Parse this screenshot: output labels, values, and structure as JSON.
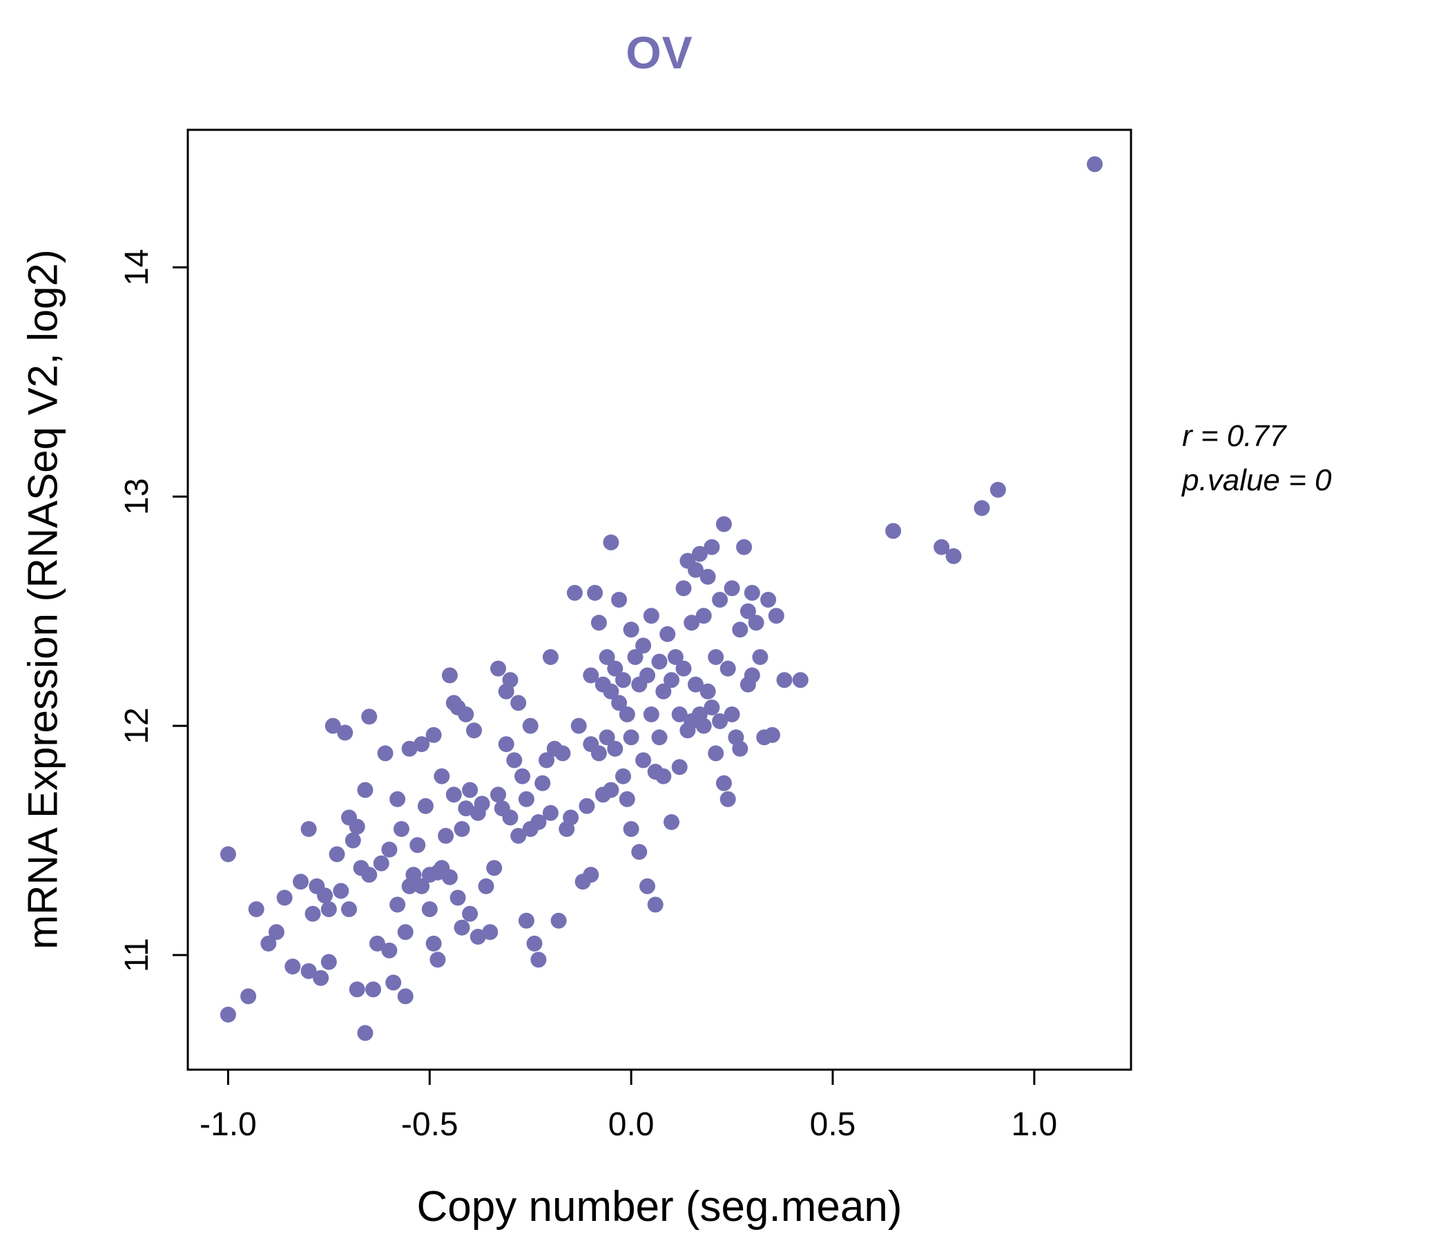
{
  "chart_data": {
    "type": "scatter",
    "title": "OV",
    "title_color": "#7570b3",
    "xlabel": "Copy number (seg.mean)",
    "ylabel": "mRNA Expression (RNASeq V2, log2)",
    "xlim": [
      -1.1,
      1.24
    ],
    "ylim": [
      10.5,
      14.6
    ],
    "xticks": [
      -1.0,
      -0.5,
      0.0,
      0.5,
      1.0
    ],
    "xtick_labels": [
      "-1.0",
      "-0.5",
      "0.0",
      "0.5",
      "1.0"
    ],
    "yticks": [
      11,
      12,
      13,
      14
    ],
    "ytick_labels": [
      "11",
      "12",
      "13",
      "14"
    ],
    "grid": false,
    "legend": "none",
    "point_color": "#7570b3",
    "annotation": {
      "line1": "r = 0.77",
      "line2": "p.value = 0"
    },
    "points": [
      [
        -1.0,
        11.44
      ],
      [
        -1.0,
        10.74
      ],
      [
        -0.95,
        10.82
      ],
      [
        -0.93,
        11.2
      ],
      [
        -0.9,
        11.05
      ],
      [
        -0.88,
        11.1
      ],
      [
        -0.86,
        11.25
      ],
      [
        -0.84,
        10.95
      ],
      [
        -0.82,
        11.32
      ],
      [
        -0.8,
        11.55
      ],
      [
        -0.8,
        10.93
      ],
      [
        -0.79,
        11.18
      ],
      [
        -0.78,
        11.3
      ],
      [
        -0.77,
        10.9
      ],
      [
        -0.76,
        11.26
      ],
      [
        -0.75,
        11.2
      ],
      [
        -0.75,
        10.97
      ],
      [
        -0.74,
        12.0
      ],
      [
        -0.73,
        11.44
      ],
      [
        -0.72,
        11.28
      ],
      [
        -0.71,
        11.97
      ],
      [
        -0.7,
        11.6
      ],
      [
        -0.7,
        11.2
      ],
      [
        -0.69,
        11.5
      ],
      [
        -0.68,
        10.85
      ],
      [
        -0.68,
        11.56
      ],
      [
        -0.67,
        11.38
      ],
      [
        -0.66,
        10.66
      ],
      [
        -0.66,
        11.72
      ],
      [
        -0.65,
        12.04
      ],
      [
        -0.65,
        11.35
      ],
      [
        -0.64,
        10.85
      ],
      [
        -0.63,
        11.05
      ],
      [
        -0.62,
        11.4
      ],
      [
        -0.61,
        11.88
      ],
      [
        -0.6,
        11.02
      ],
      [
        -0.6,
        11.46
      ],
      [
        -0.59,
        10.88
      ],
      [
        -0.58,
        11.68
      ],
      [
        -0.58,
        11.22
      ],
      [
        -0.57,
        11.55
      ],
      [
        -0.56,
        11.1
      ],
      [
        -0.56,
        10.82
      ],
      [
        -0.55,
        11.3
      ],
      [
        -0.55,
        11.9
      ],
      [
        -0.54,
        11.35
      ],
      [
        -0.53,
        11.48
      ],
      [
        -0.52,
        11.3
      ],
      [
        -0.52,
        11.92
      ],
      [
        -0.51,
        11.65
      ],
      [
        -0.5,
        11.35
      ],
      [
        -0.5,
        11.2
      ],
      [
        -0.49,
        11.96
      ],
      [
        -0.49,
        11.05
      ],
      [
        -0.48,
        11.36
      ],
      [
        -0.48,
        10.98
      ],
      [
        -0.47,
        11.38
      ],
      [
        -0.47,
        11.78
      ],
      [
        -0.46,
        11.52
      ],
      [
        -0.45,
        12.22
      ],
      [
        -0.45,
        11.34
      ],
      [
        -0.44,
        12.1
      ],
      [
        -0.44,
        11.7
      ],
      [
        -0.43,
        12.08
      ],
      [
        -0.43,
        11.25
      ],
      [
        -0.42,
        11.55
      ],
      [
        -0.42,
        11.12
      ],
      [
        -0.41,
        12.05
      ],
      [
        -0.41,
        11.64
      ],
      [
        -0.4,
        11.72
      ],
      [
        -0.4,
        11.18
      ],
      [
        -0.39,
        11.98
      ],
      [
        -0.38,
        11.62
      ],
      [
        -0.38,
        11.08
      ],
      [
        -0.37,
        11.66
      ],
      [
        -0.36,
        11.3
      ],
      [
        -0.35,
        11.1
      ],
      [
        -0.34,
        11.38
      ],
      [
        -0.33,
        12.25
      ],
      [
        -0.33,
        11.7
      ],
      [
        -0.32,
        11.64
      ],
      [
        -0.31,
        12.15
      ],
      [
        -0.31,
        11.92
      ],
      [
        -0.3,
        12.2
      ],
      [
        -0.3,
        11.6
      ],
      [
        -0.29,
        11.85
      ],
      [
        -0.28,
        12.1
      ],
      [
        -0.28,
        11.52
      ],
      [
        -0.27,
        11.78
      ],
      [
        -0.26,
        11.68
      ],
      [
        -0.26,
        11.15
      ],
      [
        -0.25,
        12.0
      ],
      [
        -0.25,
        11.55
      ],
      [
        -0.24,
        11.05
      ],
      [
        -0.23,
        11.58
      ],
      [
        -0.23,
        10.98
      ],
      [
        -0.22,
        11.75
      ],
      [
        -0.21,
        11.85
      ],
      [
        -0.2,
        12.3
      ],
      [
        -0.2,
        11.62
      ],
      [
        -0.19,
        11.9
      ],
      [
        -0.18,
        11.15
      ],
      [
        -0.17,
        11.88
      ],
      [
        -0.16,
        11.55
      ],
      [
        -0.15,
        11.6
      ],
      [
        -0.14,
        12.58
      ],
      [
        -0.13,
        12.0
      ],
      [
        -0.12,
        11.32
      ],
      [
        -0.11,
        11.65
      ],
      [
        -0.1,
        12.22
      ],
      [
        -0.1,
        11.92
      ],
      [
        -0.1,
        11.35
      ],
      [
        -0.09,
        12.58
      ],
      [
        -0.08,
        12.45
      ],
      [
        -0.08,
        11.88
      ],
      [
        -0.07,
        12.18
      ],
      [
        -0.07,
        11.7
      ],
      [
        -0.06,
        12.3
      ],
      [
        -0.06,
        11.95
      ],
      [
        -0.05,
        12.8
      ],
      [
        -0.05,
        12.15
      ],
      [
        -0.05,
        11.72
      ],
      [
        -0.04,
        12.25
      ],
      [
        -0.04,
        11.9
      ],
      [
        -0.03,
        12.55
      ],
      [
        -0.03,
        12.1
      ],
      [
        -0.02,
        12.2
      ],
      [
        -0.02,
        11.78
      ],
      [
        -0.01,
        12.05
      ],
      [
        -0.01,
        11.68
      ],
      [
        0.0,
        12.42
      ],
      [
        0.0,
        11.95
      ],
      [
        0.0,
        11.55
      ],
      [
        0.01,
        12.3
      ],
      [
        0.02,
        12.18
      ],
      [
        0.02,
        11.45
      ],
      [
        0.03,
        12.35
      ],
      [
        0.03,
        11.85
      ],
      [
        0.04,
        12.22
      ],
      [
        0.04,
        11.3
      ],
      [
        0.05,
        12.48
      ],
      [
        0.05,
        12.05
      ],
      [
        0.06,
        11.8
      ],
      [
        0.06,
        11.22
      ],
      [
        0.07,
        12.28
      ],
      [
        0.07,
        11.95
      ],
      [
        0.08,
        12.15
      ],
      [
        0.08,
        11.78
      ],
      [
        0.09,
        12.4
      ],
      [
        0.1,
        12.2
      ],
      [
        0.1,
        11.58
      ],
      [
        0.11,
        12.3
      ],
      [
        0.12,
        12.05
      ],
      [
        0.12,
        11.82
      ],
      [
        0.13,
        12.6
      ],
      [
        0.13,
        12.25
      ],
      [
        0.14,
        12.72
      ],
      [
        0.14,
        11.98
      ],
      [
        0.15,
        12.45
      ],
      [
        0.15,
        12.02
      ],
      [
        0.16,
        12.68
      ],
      [
        0.16,
        12.18
      ],
      [
        0.17,
        12.75
      ],
      [
        0.17,
        12.05
      ],
      [
        0.18,
        12.48
      ],
      [
        0.18,
        12.0
      ],
      [
        0.19,
        12.65
      ],
      [
        0.19,
        12.15
      ],
      [
        0.2,
        12.78
      ],
      [
        0.2,
        12.08
      ],
      [
        0.21,
        12.3
      ],
      [
        0.21,
        11.88
      ],
      [
        0.22,
        12.55
      ],
      [
        0.22,
        12.02
      ],
      [
        0.23,
        12.88
      ],
      [
        0.23,
        11.75
      ],
      [
        0.24,
        12.25
      ],
      [
        0.24,
        11.68
      ],
      [
        0.25,
        12.6
      ],
      [
        0.25,
        12.05
      ],
      [
        0.26,
        11.95
      ],
      [
        0.27,
        12.42
      ],
      [
        0.27,
        11.9
      ],
      [
        0.28,
        12.78
      ],
      [
        0.29,
        12.5
      ],
      [
        0.29,
        12.18
      ],
      [
        0.3,
        12.58
      ],
      [
        0.3,
        12.22
      ],
      [
        0.31,
        12.45
      ],
      [
        0.32,
        12.3
      ],
      [
        0.33,
        11.95
      ],
      [
        0.34,
        12.55
      ],
      [
        0.35,
        11.96
      ],
      [
        0.36,
        12.48
      ],
      [
        0.38,
        12.2
      ],
      [
        0.42,
        12.2
      ],
      [
        0.65,
        12.85
      ],
      [
        0.77,
        12.78
      ],
      [
        0.8,
        12.74
      ],
      [
        0.87,
        12.95
      ],
      [
        0.91,
        13.03
      ],
      [
        1.15,
        14.45
      ]
    ]
  }
}
